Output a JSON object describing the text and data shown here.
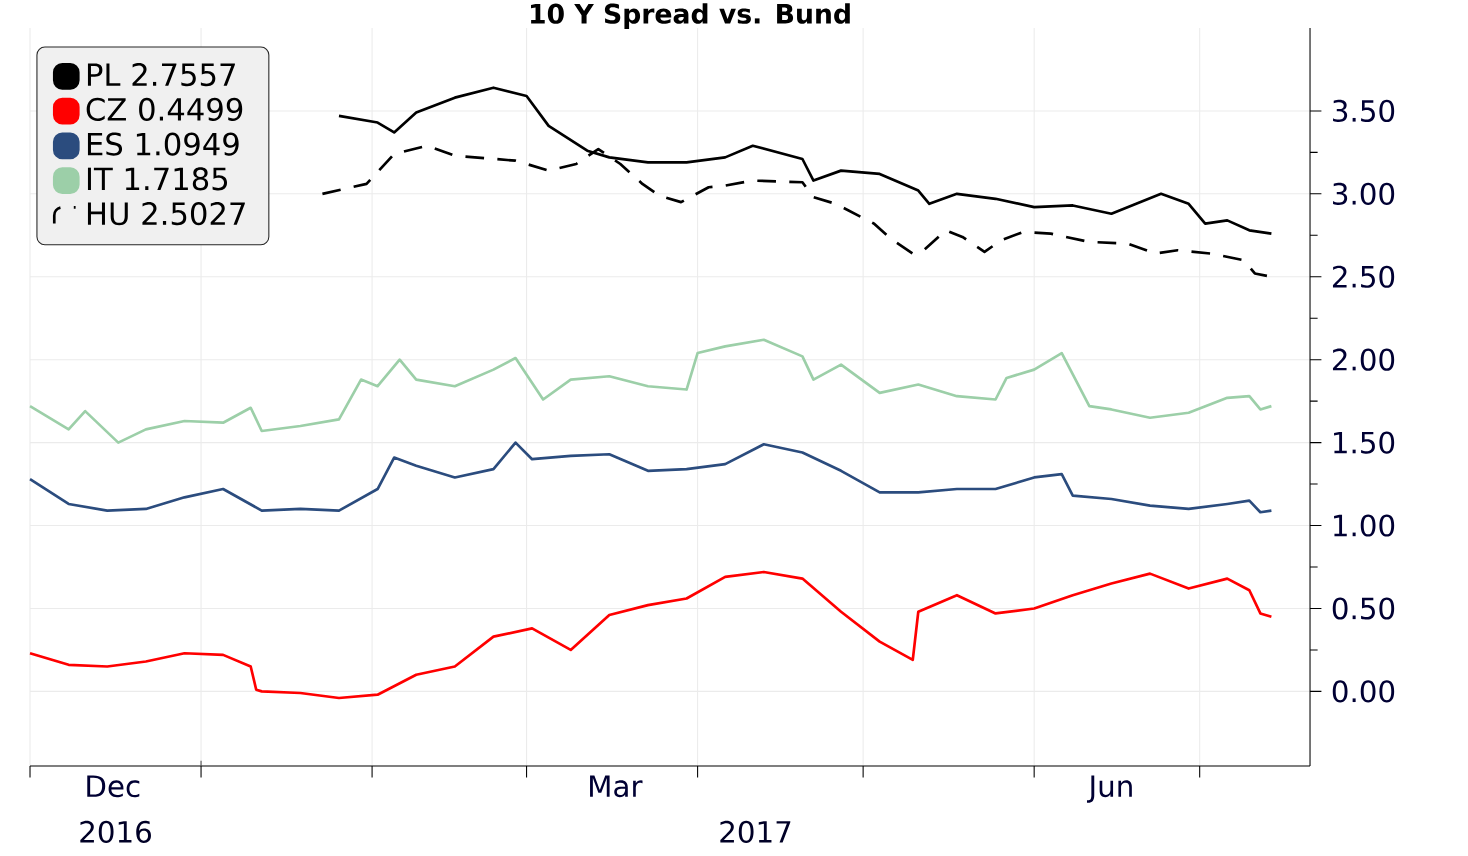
{
  "chart_data": {
    "type": "line",
    "title": "10 Y Spread vs. Bund",
    "xlim": [
      "2016-12-01",
      "2017-07-21"
    ],
    "xticks": [
      {
        "value": "2016-12-01",
        "label": null
      },
      {
        "value": "2017-01-01",
        "label": null
      },
      {
        "value": "2017-02-01",
        "label": null
      },
      {
        "value": "2017-03-01",
        "label": null
      },
      {
        "value": "2017-04-01",
        "label": null
      },
      {
        "value": "2017-05-01",
        "label": null
      },
      {
        "value": "2017-06-01",
        "label": null
      },
      {
        "value": "2017-07-01",
        "label": null
      },
      {
        "value": "2016-12-16",
        "label": "Dec"
      },
      {
        "value": "2017-03-17",
        "label": "Mar"
      },
      {
        "value": "2017-06-15",
        "label": "Jun"
      }
    ],
    "annotations": [
      "2016",
      "2017"
    ],
    "ylim": [
      -0.45,
      4.0
    ],
    "yticks": [
      {
        "value": 0,
        "label": "0.00"
      },
      {
        "value": 0.5,
        "label": "0.50"
      },
      {
        "value": 1,
        "label": "1.00"
      },
      {
        "value": 1.5,
        "label": "1.50"
      },
      {
        "value": 2,
        "label": "2.00"
      },
      {
        "value": 2.5,
        "label": "2.50"
      },
      {
        "value": 3,
        "label": "3.00"
      },
      {
        "value": 3.5,
        "label": "3.50"
      }
    ],
    "grid": true,
    "legend": "top left",
    "series": [
      {
        "name": "PL 2.7557",
        "color": "#000000",
        "line_style": "solid",
        "x": [
          "2017-01-26",
          "2017-02-02",
          "2017-02-05",
          "2017-02-09",
          "2017-02-16",
          "2017-02-23",
          "2017-03-01",
          "2017-03-05",
          "2017-03-12",
          "2017-03-16",
          "2017-03-23",
          "2017-03-30",
          "2017-04-06",
          "2017-04-11",
          "2017-04-20",
          "2017-04-22",
          "2017-04-27",
          "2017-05-04",
          "2017-05-11",
          "2017-05-13",
          "2017-05-18",
          "2017-05-25",
          "2017-06-01",
          "2017-06-08",
          "2017-06-15",
          "2017-06-24",
          "2017-06-29",
          "2017-07-02",
          "2017-07-06",
          "2017-07-10",
          "2017-07-14"
        ],
        "values": [
          3.47,
          3.43,
          3.37,
          3.49,
          3.58,
          3.64,
          3.59,
          3.41,
          3.26,
          3.22,
          3.19,
          3.19,
          3.22,
          3.29,
          3.21,
          3.08,
          3.14,
          3.12,
          3.02,
          2.94,
          3.0,
          2.97,
          2.92,
          2.93,
          2.88,
          3.0,
          2.94,
          2.82,
          2.84,
          2.78,
          2.76
        ]
      },
      {
        "name": "CZ 0.4499",
        "color": "#ff0000",
        "line_style": "solid",
        "x": [
          "2016-12-01",
          "2016-12-08",
          "2016-12-15",
          "2016-12-22",
          "2016-12-29",
          "2017-01-05",
          "2017-01-10",
          "2017-01-11",
          "2017-01-12",
          "2017-01-19",
          "2017-01-26",
          "2017-02-02",
          "2017-02-09",
          "2017-02-16",
          "2017-02-23",
          "2017-03-02",
          "2017-03-09",
          "2017-03-16",
          "2017-03-23",
          "2017-03-30",
          "2017-04-06",
          "2017-04-13",
          "2017-04-20",
          "2017-04-27",
          "2017-05-04",
          "2017-05-10",
          "2017-05-11",
          "2017-05-18",
          "2017-05-25",
          "2017-06-01",
          "2017-06-08",
          "2017-06-15",
          "2017-06-22",
          "2017-06-29",
          "2017-07-06",
          "2017-07-10",
          "2017-07-12",
          "2017-07-14"
        ],
        "values": [
          0.23,
          0.16,
          0.15,
          0.18,
          0.23,
          0.22,
          0.15,
          0.01,
          0.0,
          -0.01,
          -0.04,
          -0.02,
          0.1,
          0.15,
          0.33,
          0.38,
          0.25,
          0.46,
          0.52,
          0.56,
          0.69,
          0.72,
          0.68,
          0.48,
          0.3,
          0.19,
          0.48,
          0.58,
          0.47,
          0.5,
          0.58,
          0.65,
          0.71,
          0.62,
          0.68,
          0.61,
          0.47,
          0.45
        ]
      },
      {
        "name": "ES 1.0949",
        "color": "#2b4c7e",
        "line_style": "solid",
        "x": [
          "2016-12-01",
          "2016-12-08",
          "2016-12-15",
          "2016-12-22",
          "2016-12-29",
          "2017-01-05",
          "2017-01-12",
          "2017-01-19",
          "2017-01-26",
          "2017-02-02",
          "2017-02-05",
          "2017-02-09",
          "2017-02-16",
          "2017-02-23",
          "2017-02-27",
          "2017-03-02",
          "2017-03-09",
          "2017-03-16",
          "2017-03-23",
          "2017-03-30",
          "2017-04-06",
          "2017-04-13",
          "2017-04-20",
          "2017-04-27",
          "2017-05-04",
          "2017-05-11",
          "2017-05-18",
          "2017-05-25",
          "2017-06-01",
          "2017-06-06",
          "2017-06-08",
          "2017-06-15",
          "2017-06-22",
          "2017-06-29",
          "2017-07-06",
          "2017-07-10",
          "2017-07-12",
          "2017-07-14"
        ],
        "values": [
          1.28,
          1.13,
          1.09,
          1.1,
          1.17,
          1.22,
          1.09,
          1.1,
          1.09,
          1.22,
          1.41,
          1.36,
          1.29,
          1.34,
          1.5,
          1.4,
          1.42,
          1.43,
          1.33,
          1.34,
          1.37,
          1.49,
          1.44,
          1.33,
          1.2,
          1.2,
          1.22,
          1.22,
          1.29,
          1.31,
          1.18,
          1.16,
          1.12,
          1.1,
          1.13,
          1.15,
          1.08,
          1.09
        ]
      },
      {
        "name": "IT 1.7185",
        "color": "#9ccfa8",
        "line_style": "solid",
        "x": [
          "2016-12-01",
          "2016-12-08",
          "2016-12-11",
          "2016-12-17",
          "2016-12-22",
          "2016-12-29",
          "2017-01-05",
          "2017-01-10",
          "2017-01-12",
          "2017-01-19",
          "2017-01-26",
          "2017-01-30",
          "2017-02-02",
          "2017-02-06",
          "2017-02-09",
          "2017-02-16",
          "2017-02-23",
          "2017-02-27",
          "2017-03-04",
          "2017-03-09",
          "2017-03-16",
          "2017-03-23",
          "2017-03-30",
          "2017-04-01",
          "2017-04-06",
          "2017-04-13",
          "2017-04-20",
          "2017-04-22",
          "2017-04-27",
          "2017-05-04",
          "2017-05-11",
          "2017-05-18",
          "2017-05-25",
          "2017-05-27",
          "2017-06-01",
          "2017-06-06",
          "2017-06-11",
          "2017-06-15",
          "2017-06-22",
          "2017-06-29",
          "2017-07-06",
          "2017-07-10",
          "2017-07-12",
          "2017-07-14"
        ],
        "values": [
          1.72,
          1.58,
          1.69,
          1.5,
          1.58,
          1.63,
          1.62,
          1.71,
          1.57,
          1.6,
          1.64,
          1.88,
          1.84,
          2.0,
          1.88,
          1.84,
          1.94,
          2.01,
          1.76,
          1.88,
          1.9,
          1.84,
          1.82,
          2.04,
          2.08,
          2.12,
          2.02,
          1.88,
          1.97,
          1.8,
          1.85,
          1.78,
          1.76,
          1.89,
          1.94,
          2.04,
          1.72,
          1.7,
          1.65,
          1.68,
          1.77,
          1.78,
          1.7,
          1.72
        ]
      },
      {
        "name": "HU 2.5027",
        "color": "#000000",
        "line_style": "dashed",
        "x": [
          "2017-01-23",
          "2017-01-31",
          "2017-02-05",
          "2017-02-11",
          "2017-02-16",
          "2017-02-27",
          "2017-03-05",
          "2017-03-10",
          "2017-03-14",
          "2017-03-18",
          "2017-03-22",
          "2017-03-25",
          "2017-03-29",
          "2017-04-03",
          "2017-04-06",
          "2017-04-11",
          "2017-04-20",
          "2017-04-22",
          "2017-04-26",
          "2017-05-03",
          "2017-05-06",
          "2017-05-10",
          "2017-05-12",
          "2017-05-16",
          "2017-05-19",
          "2017-05-23",
          "2017-05-26",
          "2017-05-30",
          "2017-06-04",
          "2017-06-11",
          "2017-06-18",
          "2017-06-23",
          "2017-06-27",
          "2017-07-03",
          "2017-07-09",
          "2017-07-11",
          "2017-07-14"
        ],
        "values": [
          3.0,
          3.06,
          3.24,
          3.29,
          3.23,
          3.2,
          3.14,
          3.18,
          3.27,
          3.18,
          3.06,
          2.99,
          2.95,
          3.04,
          3.05,
          3.08,
          3.07,
          2.98,
          2.94,
          2.82,
          2.73,
          2.64,
          2.66,
          2.78,
          2.74,
          2.65,
          2.72,
          2.77,
          2.76,
          2.71,
          2.7,
          2.64,
          2.66,
          2.64,
          2.6,
          2.52,
          2.5
        ]
      }
    ]
  }
}
